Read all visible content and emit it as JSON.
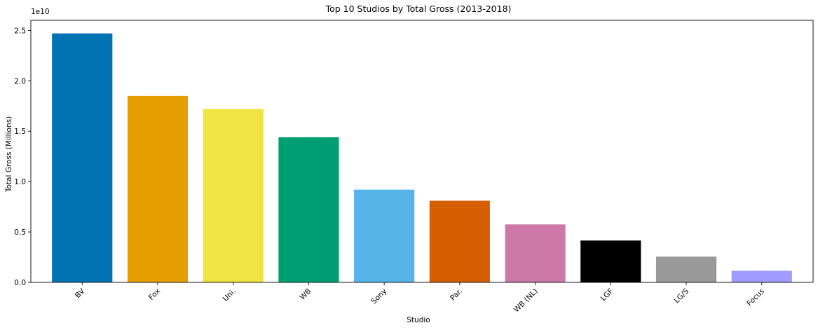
{
  "chart_data": {
    "type": "bar",
    "title": "Top 10 Studios by Total Gross (2013-2018)",
    "xlabel": "Studio",
    "ylabel": "Total Gross (Millions)",
    "y_offset_label": "1e10",
    "ylim": [
      0,
      2.6
    ],
    "y_ticks": [
      0.0,
      0.5,
      1.0,
      1.5,
      2.0,
      2.5
    ],
    "y_tick_labels": [
      "0.0",
      "0.5",
      "1.0",
      "1.5",
      "2.0",
      "2.5"
    ],
    "x_tick_rotation": 45,
    "grid": false,
    "legend": "none",
    "categories": [
      "BV",
      "Fox",
      "Uni.",
      "WB",
      "Sony",
      "Par.",
      "WB (NL)",
      "LGF",
      "LG/S",
      "Focus"
    ],
    "values": [
      2.47,
      1.85,
      1.72,
      1.44,
      0.92,
      0.81,
      0.575,
      0.415,
      0.255,
      0.115
    ],
    "colors": [
      "#0072B2",
      "#E69F00",
      "#F0E442",
      "#009E73",
      "#56B4E9",
      "#D55E00",
      "#CC79A7",
      "#000000",
      "#999999",
      "#A09CFF"
    ]
  }
}
